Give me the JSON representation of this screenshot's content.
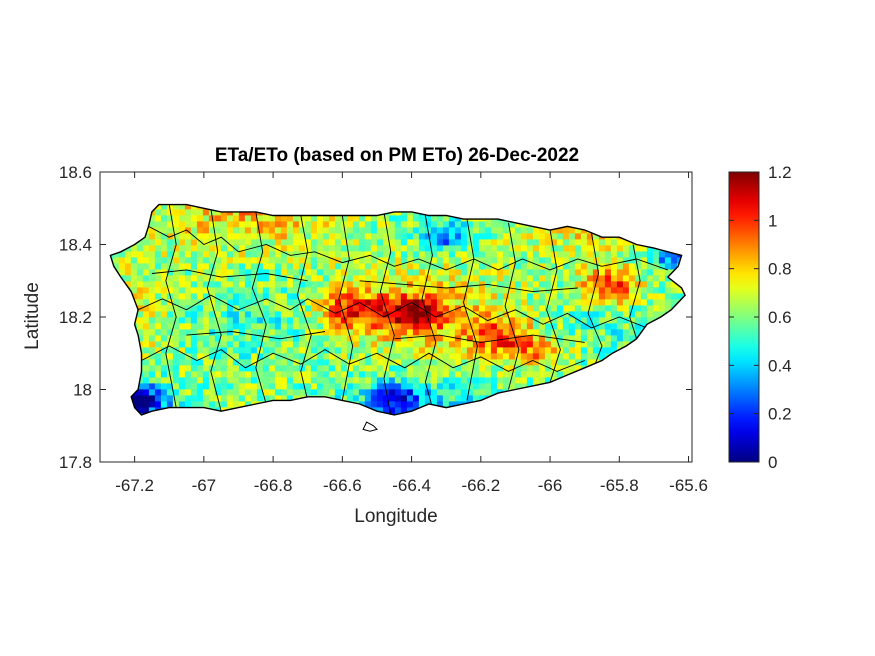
{
  "colors": {
    "background": "#ffffff",
    "axis": "#262626",
    "boundary": "#000000",
    "colormap": [
      "#800000",
      "#ff0000",
      "#ff8000",
      "#ffff00",
      "#80ff80",
      "#00ffff",
      "#0080ff",
      "#0000ff",
      "#000080"
    ]
  },
  "chart_data": {
    "type": "heatmap",
    "title": "ETa/ETo (based on PM ETo) 26-Dec-2022",
    "xlabel": "Longitude",
    "ylabel": "Latitude",
    "xlim": [
      -67.3,
      -65.59
    ],
    "ylim": [
      17.8,
      18.6
    ],
    "xticks": [
      -67.2,
      -67,
      -66.8,
      -66.6,
      -66.4,
      -66.2,
      -66,
      -65.8,
      -65.6
    ],
    "xtick_labels": [
      "-67.2",
      "-67",
      "-66.8",
      "-66.6",
      "-66.4",
      "-66.2",
      "-66",
      "-65.8",
      "-65.6"
    ],
    "yticks": [
      17.8,
      18,
      18.2,
      18.4,
      18.6
    ],
    "ytick_labels": [
      "17.8",
      "18",
      "18.2",
      "18.4",
      "18.6"
    ],
    "colorbar": {
      "range": [
        0,
        1.2
      ],
      "ticks": [
        0,
        0.2,
        0.4,
        0.6,
        0.8,
        1,
        1.2
      ],
      "tick_labels": [
        "0",
        "0.2",
        "0.4",
        "0.6",
        "0.8",
        "1",
        "1.2"
      ],
      "colormap": "jet"
    },
    "grid": false,
    "features": {
      "high_ratio_zones": [
        {
          "lon": -66.4,
          "lat": 18.21,
          "value": 1.15
        },
        {
          "lon": -66.58,
          "lat": 18.22,
          "value": 1.05
        },
        {
          "lon": -65.83,
          "lat": 18.28,
          "value": 1.1
        },
        {
          "lon": -66.15,
          "lat": 18.15,
          "value": 0.95
        },
        {
          "lon": -66.05,
          "lat": 18.1,
          "value": 0.9
        }
      ],
      "low_ratio_zones": [
        {
          "lon": -66.45,
          "lat": 17.98,
          "value": 0.25
        },
        {
          "lon": -67.18,
          "lat": 17.97,
          "value": 0.1
        },
        {
          "lon": -65.63,
          "lat": 18.37,
          "value": 0.2
        },
        {
          "lon": -66.3,
          "lat": 18.42,
          "value": 0.35
        }
      ],
      "typical_value": 0.65
    }
  }
}
